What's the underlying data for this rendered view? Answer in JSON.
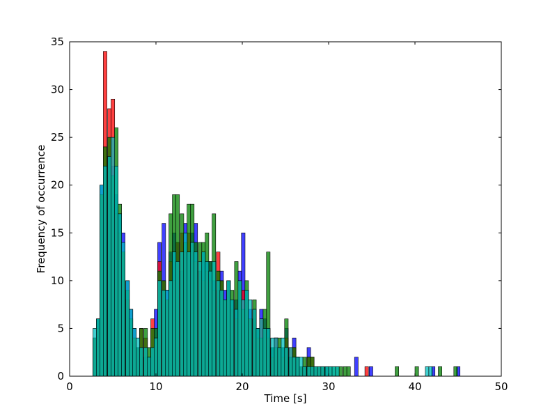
{
  "chart_data": {
    "type": "bar",
    "subtype": "overlapping histogram",
    "title": "",
    "xlabel": "Time [s]",
    "ylabel": "Frequency of occurrence",
    "xlim": [
      0,
      50
    ],
    "ylim": [
      0,
      35
    ],
    "xticks": [
      0,
      10,
      20,
      30,
      40,
      50
    ],
    "yticks": [
      0,
      5,
      10,
      15,
      20,
      25,
      30,
      35
    ],
    "grid": false,
    "legend": "none",
    "bin_width": 0.42,
    "series": [
      {
        "color": "#0000ff",
        "opacity": 0.75,
        "x": [
          2.7,
          3.1,
          3.5,
          3.9,
          4.4,
          4.8,
          5.2,
          5.6,
          6.0,
          6.5,
          6.9,
          7.3,
          7.7,
          8.1,
          8.6,
          9.0,
          9.4,
          9.8,
          10.2,
          10.7,
          11.1,
          11.5,
          11.9,
          12.3,
          12.8,
          13.2,
          13.6,
          14.0,
          14.4,
          14.9,
          15.3,
          15.7,
          16.1,
          16.5,
          17.0,
          17.4,
          17.8,
          18.2,
          18.6,
          19.1,
          19.5,
          19.9,
          20.3,
          20.7,
          21.2,
          21.6,
          22.0,
          22.4,
          22.8,
          23.3,
          23.7,
          24.1,
          24.5,
          24.9,
          25.4,
          25.8,
          26.2,
          26.6,
          27.0,
          27.5,
          27.9,
          28.3,
          28.7,
          29.1,
          29.6,
          33.0,
          34.7,
          41.9,
          44.8
        ],
        "values": [
          4,
          6,
          20,
          22,
          23,
          22,
          19,
          17,
          15,
          10,
          7,
          5,
          3,
          3,
          2,
          2,
          3,
          7,
          14,
          16,
          9,
          13,
          15,
          14,
          11,
          16,
          13,
          15,
          16,
          11,
          13,
          12,
          12,
          10,
          9,
          11,
          9,
          10,
          8,
          8,
          11,
          15,
          9,
          7,
          6,
          5,
          7,
          6,
          5,
          3,
          4,
          3,
          3,
          5,
          2,
          4,
          2,
          1,
          1,
          3,
          1,
          1,
          1,
          1,
          1,
          2,
          1,
          1,
          1
        ]
      },
      {
        "color": "#ff0000",
        "opacity": 0.75,
        "x": [
          2.7,
          3.1,
          3.5,
          3.9,
          4.4,
          4.8,
          5.2,
          5.6,
          6.0,
          6.5,
          6.9,
          7.3,
          7.7,
          8.1,
          8.6,
          9.0,
          9.4,
          9.8,
          10.2,
          10.7,
          11.1,
          11.5,
          11.9,
          12.3,
          12.8,
          13.2,
          13.6,
          14.0,
          14.4,
          14.9,
          15.3,
          15.7,
          16.1,
          16.5,
          17.0,
          17.4,
          17.8,
          18.2,
          18.6,
          19.1,
          19.5,
          19.9,
          20.3,
          20.7,
          21.2,
          21.6,
          22.0,
          22.4,
          22.8,
          23.3,
          23.7,
          24.1,
          24.5,
          24.9,
          25.4,
          25.8,
          26.2,
          26.6,
          27.0,
          27.5,
          27.9,
          28.3,
          28.7,
          29.1,
          34.2
        ],
        "values": [
          4,
          5,
          19,
          34,
          28,
          29,
          17,
          15,
          13,
          8,
          5,
          4,
          3,
          5,
          4,
          2,
          6,
          4,
          12,
          10,
          8,
          12,
          10,
          14,
          15,
          13,
          15,
          14,
          12,
          11,
          10,
          11,
          10,
          9,
          13,
          10,
          8,
          9,
          7,
          6,
          10,
          9,
          8,
          6,
          7,
          4,
          6,
          5,
          4,
          2,
          4,
          3,
          2,
          4,
          3,
          3,
          2,
          1,
          1,
          2,
          2,
          1,
          1,
          1,
          1
        ]
      },
      {
        "color": "#008000",
        "opacity": 0.75,
        "x": [
          2.7,
          3.1,
          3.5,
          3.9,
          4.4,
          4.8,
          5.2,
          5.6,
          6.0,
          6.5,
          6.9,
          7.3,
          7.7,
          8.1,
          8.6,
          9.0,
          9.4,
          9.8,
          10.2,
          10.7,
          11.1,
          11.5,
          11.9,
          12.3,
          12.8,
          13.2,
          13.6,
          14.0,
          14.4,
          14.9,
          15.3,
          15.7,
          16.1,
          16.5,
          17.0,
          17.4,
          17.8,
          18.2,
          18.6,
          19.1,
          19.5,
          19.9,
          20.3,
          20.7,
          21.2,
          21.6,
          22.0,
          22.4,
          22.8,
          23.3,
          23.7,
          24.1,
          24.5,
          24.9,
          25.4,
          25.8,
          26.2,
          26.6,
          27.0,
          27.5,
          27.9,
          28.3,
          28.7,
          29.1,
          29.6,
          30.0,
          30.4,
          30.8,
          31.2,
          31.7,
          32.1,
          37.7,
          40.0,
          42.7,
          44.5
        ],
        "values": [
          4,
          6,
          19,
          24,
          25,
          21,
          26,
          18,
          13,
          9,
          6,
          4,
          3,
          5,
          5,
          3,
          5,
          5,
          11,
          10,
          8,
          17,
          19,
          19,
          17,
          14,
          18,
          18,
          14,
          14,
          14,
          15,
          12,
          17,
          11,
          10,
          8,
          10,
          9,
          12,
          10,
          7,
          10,
          6,
          8,
          5,
          4,
          7,
          13,
          3,
          3,
          4,
          3,
          6,
          2,
          3,
          2,
          1,
          2,
          2,
          2,
          1,
          1,
          1,
          1,
          1,
          1,
          1,
          1,
          1,
          1,
          1,
          1,
          1,
          1
        ]
      },
      {
        "color": "#00bfbf",
        "opacity": 0.75,
        "x": [
          2.7,
          3.1,
          3.5,
          3.9,
          4.4,
          4.8,
          5.2,
          5.6,
          6.0,
          6.5,
          6.9,
          7.3,
          7.7,
          8.1,
          8.6,
          9.0,
          9.4,
          9.8,
          10.2,
          10.7,
          11.1,
          11.5,
          11.9,
          12.3,
          12.8,
          13.2,
          13.6,
          14.0,
          14.4,
          14.9,
          15.3,
          15.7,
          16.1,
          16.5,
          17.0,
          17.4,
          17.8,
          18.2,
          18.6,
          19.1,
          19.5,
          19.9,
          20.3,
          20.7,
          21.2,
          21.6,
          22.0,
          22.4,
          22.8,
          23.3,
          23.7,
          24.1,
          24.5,
          24.9,
          25.4,
          25.8,
          26.2,
          26.6,
          27.0,
          27.5,
          27.9,
          28.3,
          28.7,
          29.1,
          29.6,
          30.0,
          30.4,
          30.8,
          41.2,
          41.6
        ],
        "values": [
          5,
          6,
          20,
          22,
          23,
          25,
          22,
          17,
          14,
          10,
          7,
          5,
          4,
          3,
          3,
          2,
          3,
          4,
          10,
          9,
          9,
          10,
          13,
          12,
          13,
          15,
          13,
          14,
          13,
          12,
          13,
          12,
          11,
          12,
          10,
          9,
          8,
          10,
          8,
          7,
          10,
          8,
          9,
          8,
          7,
          5,
          6,
          5,
          5,
          4,
          4,
          3,
          4,
          3,
          3,
          2,
          2,
          2,
          1,
          1,
          1,
          1,
          1,
          1,
          1,
          1,
          1,
          1,
          1,
          1
        ]
      }
    ]
  }
}
